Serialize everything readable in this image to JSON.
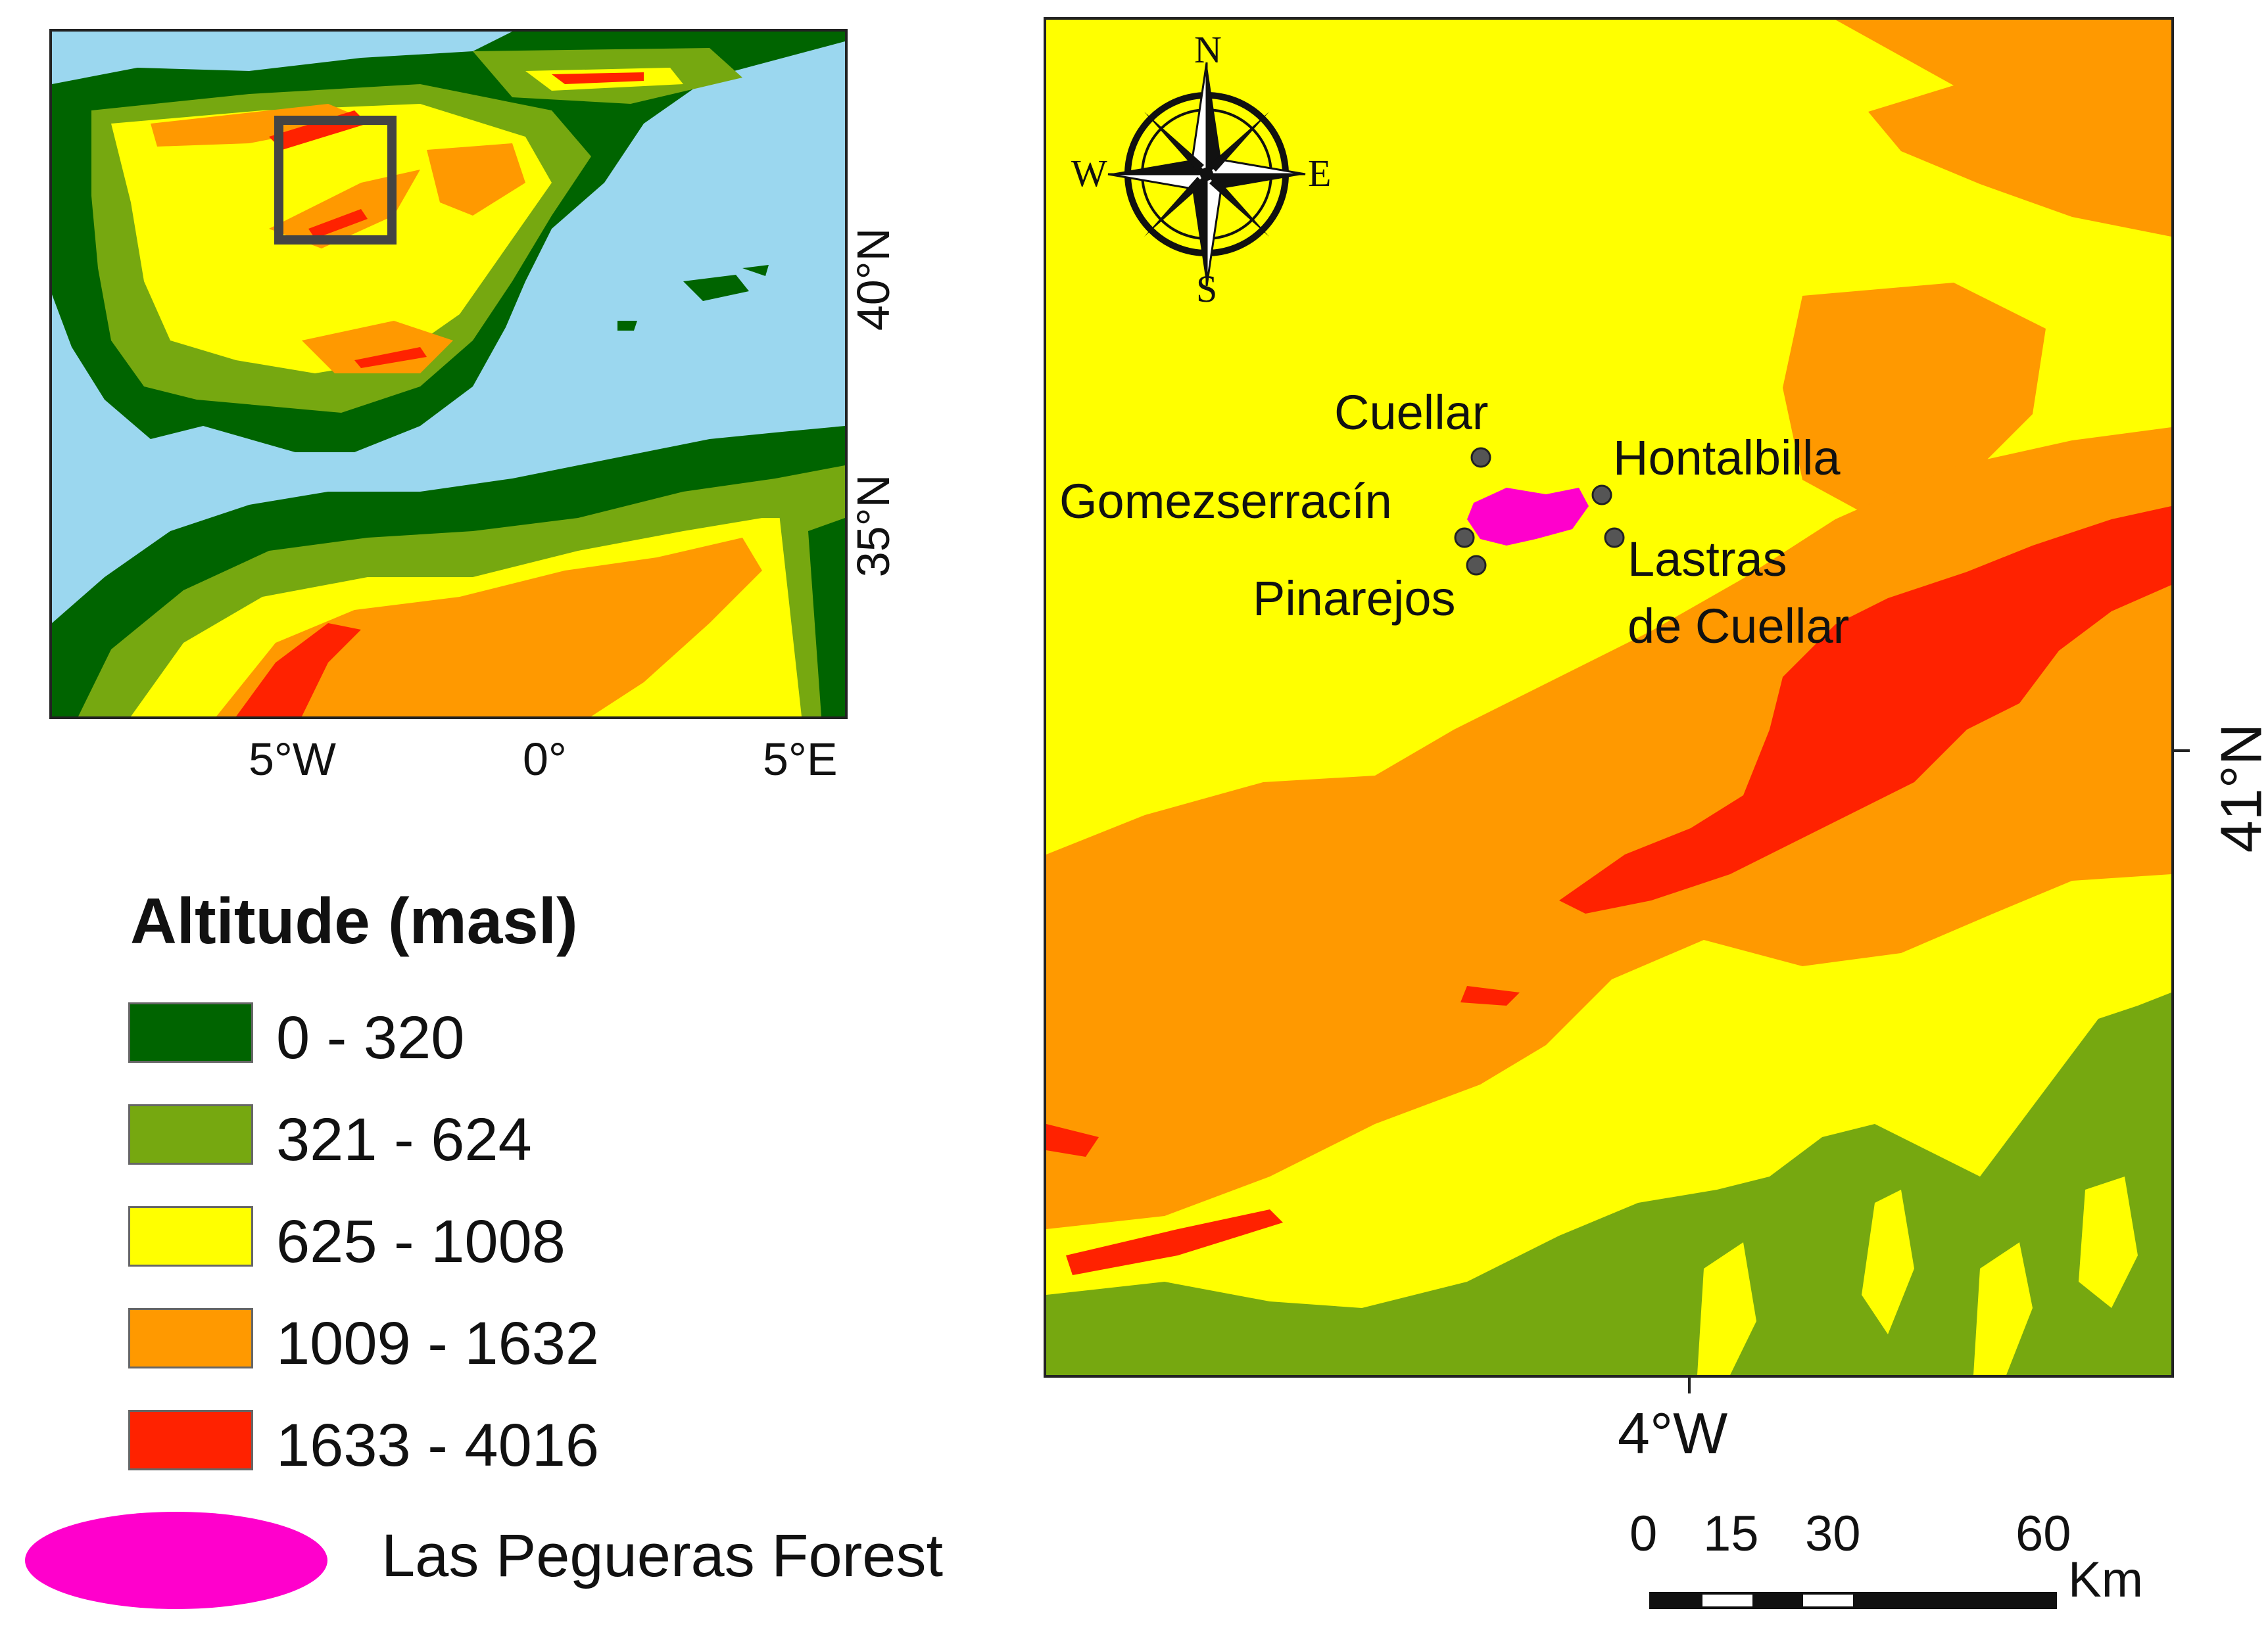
{
  "inset_map": {
    "lat_labels": [
      "40°N",
      "35°N"
    ],
    "lon_labels": [
      "5°W",
      "0°",
      "5°E"
    ]
  },
  "main_map": {
    "lat_label": "41°N",
    "lon_label": "4°W",
    "compass": {
      "n": "N",
      "s": "S",
      "e": "E",
      "w": "W"
    },
    "towns": [
      {
        "name": "Cuellar"
      },
      {
        "name": "Hontalbilla"
      },
      {
        "name": "Gomezserracín"
      },
      {
        "name": "Pinarejos"
      },
      {
        "name": "Lastras"
      },
      {
        "name": "de Cuellar"
      }
    ]
  },
  "legend": {
    "title": "Altitude (masl)",
    "classes": [
      {
        "label": "0 - 320",
        "color": "#006400"
      },
      {
        "label": "321 - 624",
        "color": "#76a810"
      },
      {
        "label": "625 - 1008",
        "color": "#ffff00"
      },
      {
        "label": "1009 - 1632",
        "color": "#ff9900"
      },
      {
        "label": "1633 - 4016",
        "color": "#ff2200"
      }
    ],
    "forest": {
      "label": "Las Pegueras Forest",
      "color": "#ff00cc"
    }
  },
  "scale_bar": {
    "ticks": [
      "0",
      "15",
      "30",
      "60"
    ],
    "unit": "Km"
  },
  "colors": {
    "sea": "#9bd7ef",
    "study_area_box": "#444444"
  }
}
